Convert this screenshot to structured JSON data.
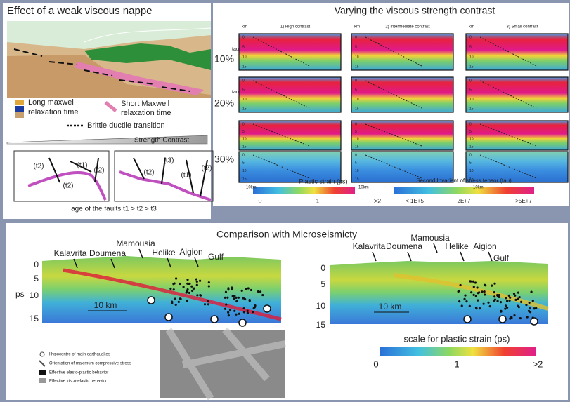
{
  "nappe": {
    "title": "Effect of a weak viscous nappe",
    "legend_long": [
      "Long maxwel",
      "relaxation time"
    ],
    "legend_short": [
      "Short Maxwell",
      "relaxation time"
    ],
    "brittle": "Brittle ductile transition",
    "strength": "Strength Contrast",
    "faults_left": [
      "(t2)",
      "(t1)",
      "(t2)",
      "(t2)"
    ],
    "faults_right": [
      "(t3)",
      "(t2)",
      "(t1)",
      "(t2)"
    ],
    "caption": "age of the faults t1 > t2 > t3"
  },
  "contrast": {
    "title": "Varying the viscous strength contrast",
    "columns": [
      "1) High contrast",
      "2) Intermediate contrast",
      "3) Small contrast"
    ],
    "km": "km",
    "rows": [
      "10%",
      "20%",
      "30%"
    ],
    "tau": "tau",
    "depth_ticks": [
      "0",
      "5",
      "10",
      "15"
    ],
    "scale_bar": "10km",
    "ps_scale": {
      "title": "Plastic strain  (ps)",
      "labels": [
        "0",
        "1",
        ">2"
      ]
    },
    "tau_scale": {
      "title": "Second Invariant of stress tensor  (tau)",
      "labels": [
        "< 1E+5",
        "2E+7",
        ">5E+7"
      ]
    }
  },
  "seismicity": {
    "title": "Comparison with Microseismicty",
    "places": [
      "Kalavrita",
      "Doumena",
      "Mamousia",
      "Helike",
      "Aigion"
    ],
    "gulf": "Gulf",
    "depths": [
      "0",
      "5",
      "10",
      "15"
    ],
    "ps": "ps",
    "scale_bar": "10 km",
    "scale_title": "scale for plastic strain (ps)",
    "scale_labels": [
      "0",
      "1",
      ">2"
    ],
    "legend": [
      "Hypocentre of main earthquakes",
      "Orientation of maximum compressive stress",
      "Effective elasto-plastic behavior",
      "Effective visco-elastic behavior"
    ]
  }
}
